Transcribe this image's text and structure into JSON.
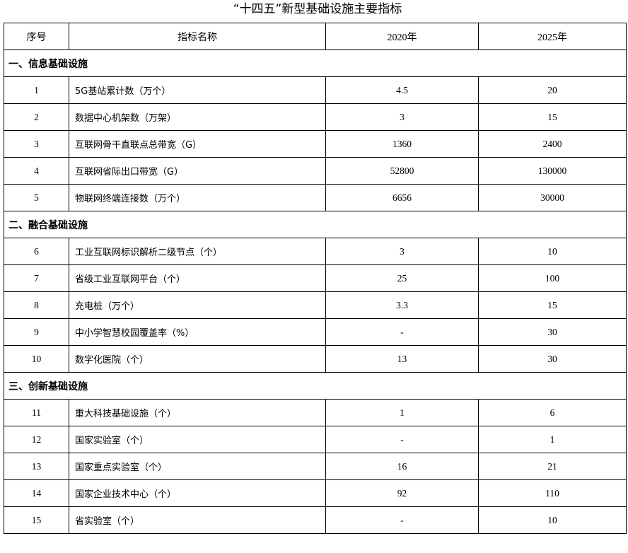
{
  "title": "“十四五”新型基础设施主要指标",
  "headers": [
    "序号",
    "指标名称",
    "2020年",
    "2025年"
  ],
  "sections": [
    {
      "label": "一、信息基础设施",
      "rows": [
        {
          "no": "1",
          "name": "5G基站累计数（万个）",
          "y2020": "4.5",
          "y2025": "20"
        },
        {
          "no": "2",
          "name": "数据中心机架数（万架）",
          "y2020": "3",
          "y2025": "15"
        },
        {
          "no": "3",
          "name": "互联网骨干直联点总带宽（G）",
          "y2020": "1360",
          "y2025": "2400"
        },
        {
          "no": "4",
          "name": "互联网省际出口带宽（G）",
          "y2020": "52800",
          "y2025": "130000"
        },
        {
          "no": "5",
          "name": "物联网终端连接数（万个）",
          "y2020": "6656",
          "y2025": "30000"
        }
      ]
    },
    {
      "label": "二、融合基础设施",
      "rows": [
        {
          "no": "6",
          "name": "工业互联网标识解析二级节点（个）",
          "y2020": "3",
          "y2025": "10"
        },
        {
          "no": "7",
          "name": "省级工业互联网平台（个）",
          "y2020": "25",
          "y2025": "100"
        },
        {
          "no": "8",
          "name": "充电桩（万个）",
          "y2020": "3.3",
          "y2025": "15"
        },
        {
          "no": "9",
          "name": "中小学智慧校园覆盖率（%）",
          "y2020": "-",
          "y2025": "30"
        },
        {
          "no": "10",
          "name": "数字化医院（个）",
          "y2020": "13",
          "y2025": "30"
        }
      ]
    },
    {
      "label": "三、创新基础设施",
      "rows": [
        {
          "no": "11",
          "name": "重大科技基础设施（个）",
          "y2020": "1",
          "y2025": "6"
        },
        {
          "no": "12",
          "name": "国家实验室（个）",
          "y2020": "-",
          "y2025": "1"
        },
        {
          "no": "13",
          "name": "国家重点实验室（个）",
          "y2020": "16",
          "y2025": "21"
        },
        {
          "no": "14",
          "name": "国家企业技术中心（个）",
          "y2020": "92",
          "y2025": "110"
        },
        {
          "no": "15",
          "name": "省实验室（个）",
          "y2020": "-",
          "y2025": "10"
        }
      ]
    }
  ]
}
